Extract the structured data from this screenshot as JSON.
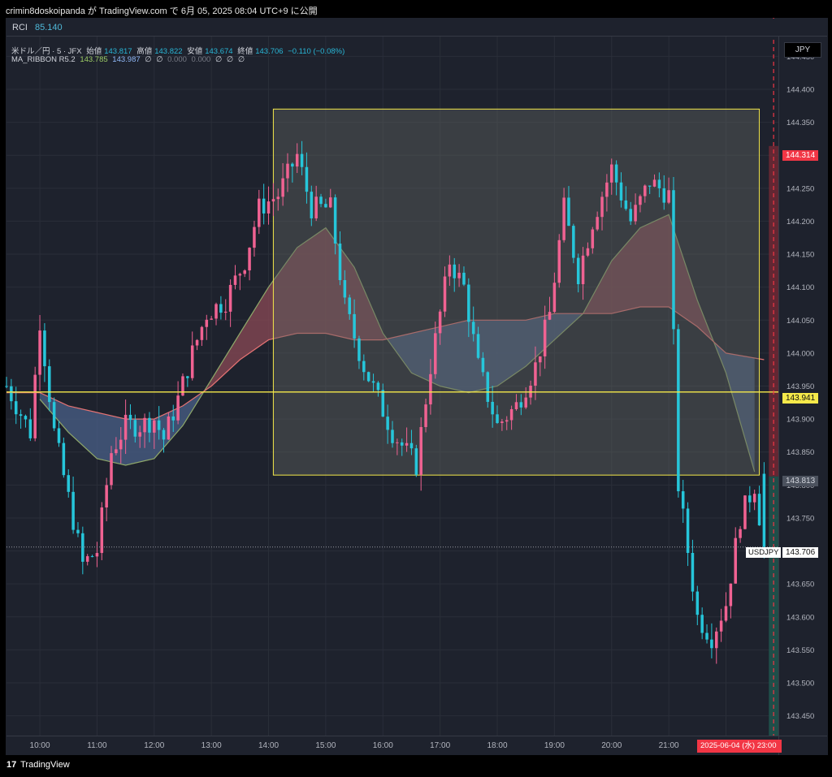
{
  "header": {
    "share_text": "crimin8doskoipanda が TradingView.com で 6月 05, 2025 08:04 UTC+9 に公開"
  },
  "rci_pane": {
    "label": "RCI",
    "value": "85.140"
  },
  "legend": {
    "symbol": "米ドル／円 · 5 · JFX",
    "open_label": "始値",
    "open": "143.817",
    "high_label": "高値",
    "high": "143.822",
    "low_label": "安値",
    "low": "143.674",
    "close_label": "終値",
    "close": "143.706",
    "change": "−0.110 (−0.08%)",
    "indicator_name": "MA_RIBBON R5.2",
    "indicator_values": [
      "143.785",
      "143.987",
      "∅",
      "∅",
      "0.000",
      "0.000",
      "∅",
      "∅",
      "∅"
    ]
  },
  "currency_button": "JPY",
  "price_labels": {
    "target": "144.314",
    "horizontal_line": "143.941",
    "entry": "143.813",
    "last_symbol": "USDJPY",
    "last": "143.706"
  },
  "date_tag": "2025-06-04 (水)  23:00",
  "footer": {
    "logo_glyph": "17",
    "brand": "TradingView"
  },
  "colors": {
    "bull": "#f06292",
    "bear": "#26c6da",
    "background": "#1e222d",
    "ribbon_up": "#8b4a55",
    "ribbon_down": "#4a6088",
    "fast_ma": "#8fa86a",
    "slow_ma": "#e57373",
    "slow_ma_down": "#a8c4f0",
    "hline": "#f5e94a",
    "box_border": "#f5e94a",
    "target_zone": "#7a2a35",
    "stop_zone": "#1f5a50",
    "date_line": "#f23645"
  },
  "chart_data": {
    "type": "candlestick",
    "x_ticks": [
      "10:00",
      "11:00",
      "12:00",
      "13:00",
      "14:00",
      "15:00",
      "16:00",
      "17:00",
      "18:00",
      "19:00",
      "20:00",
      "21:00",
      "22:00"
    ],
    "y_ticks": [
      "144.450",
      "144.400",
      "144.350",
      "144.300",
      "144.250",
      "144.200",
      "144.150",
      "144.100",
      "144.050",
      "144.000",
      "143.950",
      "143.900",
      "143.850",
      "143.800",
      "143.750",
      "143.700",
      "143.650",
      "143.600",
      "143.550",
      "143.500",
      "143.450"
    ],
    "ylim": [
      143.42,
      144.48
    ],
    "x_range": [
      "09:25",
      "22:55"
    ],
    "candle_interval_minutes": 5,
    "close_path": [
      [
        "09:25",
        143.95
      ],
      [
        "09:50",
        143.88
      ],
      [
        "10:00",
        144.05
      ],
      [
        "10:15",
        143.88
      ],
      [
        "10:30",
        143.78
      ],
      [
        "10:45",
        143.68
      ],
      [
        "11:00",
        143.7
      ],
      [
        "11:15",
        143.85
      ],
      [
        "11:30",
        143.89
      ],
      [
        "11:45",
        143.89
      ],
      [
        "12:00",
        143.9
      ],
      [
        "12:10",
        143.87
      ],
      [
        "12:25",
        143.93
      ],
      [
        "12:40",
        144.0
      ],
      [
        "12:55",
        144.06
      ],
      [
        "13:15",
        144.08
      ],
      [
        "13:35",
        144.14
      ],
      [
        "13:50",
        144.22
      ],
      [
        "14:10",
        144.24
      ],
      [
        "14:30",
        144.3
      ],
      [
        "14:45",
        144.22
      ],
      [
        "15:05",
        144.22
      ],
      [
        "15:20",
        144.07
      ],
      [
        "15:40",
        143.98
      ],
      [
        "15:55",
        143.93
      ],
      [
        "16:10",
        143.88
      ],
      [
        "16:35",
        143.83
      ],
      [
        "16:50",
        143.98
      ],
      [
        "17:10",
        144.14
      ],
      [
        "17:25",
        144.1
      ],
      [
        "17:40",
        143.98
      ],
      [
        "18:00",
        143.89
      ],
      [
        "18:20",
        143.92
      ],
      [
        "18:40",
        143.98
      ],
      [
        "18:55",
        144.06
      ],
      [
        "19:10",
        144.22
      ],
      [
        "19:25",
        144.12
      ],
      [
        "19:40",
        144.2
      ],
      [
        "20:00",
        144.28
      ],
      [
        "20:20",
        144.2
      ],
      [
        "20:40",
        144.26
      ],
      [
        "21:00",
        144.24
      ],
      [
        "21:10",
        143.8
      ],
      [
        "21:20",
        143.7
      ],
      [
        "21:30",
        143.6
      ],
      [
        "21:45",
        143.57
      ],
      [
        "22:00",
        143.62
      ],
      [
        "22:15",
        143.75
      ],
      [
        "22:30",
        143.8
      ],
      [
        "22:40",
        143.706
      ]
    ],
    "ohlc_last": {
      "open": 143.817,
      "high": 143.822,
      "low": 143.674,
      "close": 143.706
    },
    "ma_fast": [
      [
        "10:00",
        143.93
      ],
      [
        "10:30",
        143.88
      ],
      [
        "11:00",
        143.84
      ],
      [
        "11:30",
        143.83
      ],
      [
        "12:00",
        143.84
      ],
      [
        "12:30",
        143.89
      ],
      [
        "13:00",
        143.96
      ],
      [
        "13:30",
        144.03
      ],
      [
        "14:00",
        144.1
      ],
      [
        "14:30",
        144.16
      ],
      [
        "15:00",
        144.19
      ],
      [
        "15:30",
        144.13
      ],
      [
        "16:00",
        144.03
      ],
      [
        "16:30",
        143.97
      ],
      [
        "17:00",
        143.95
      ],
      [
        "17:30",
        143.94
      ],
      [
        "18:00",
        143.95
      ],
      [
        "18:30",
        143.98
      ],
      [
        "19:00",
        144.02
      ],
      [
        "19:30",
        144.06
      ],
      [
        "20:00",
        144.14
      ],
      [
        "20:30",
        144.19
      ],
      [
        "21:00",
        144.21
      ],
      [
        "21:30",
        144.08
      ],
      [
        "22:00",
        143.97
      ],
      [
        "22:30",
        143.82
      ]
    ],
    "ma_slow": [
      [
        "09:25",
        143.94
      ],
      [
        "10:00",
        143.94
      ],
      [
        "10:30",
        143.92
      ],
      [
        "11:00",
        143.91
      ],
      [
        "11:30",
        143.9
      ],
      [
        "12:00",
        143.9
      ],
      [
        "12:30",
        143.92
      ],
      [
        "13:00",
        143.95
      ],
      [
        "13:30",
        143.99
      ],
      [
        "14:00",
        144.02
      ],
      [
        "14:30",
        144.03
      ],
      [
        "15:00",
        144.03
      ],
      [
        "15:30",
        144.02
      ],
      [
        "16:00",
        144.02
      ],
      [
        "16:30",
        144.03
      ],
      [
        "17:00",
        144.04
      ],
      [
        "17:30",
        144.05
      ],
      [
        "18:00",
        144.05
      ],
      [
        "18:30",
        144.05
      ],
      [
        "19:00",
        144.06
      ],
      [
        "19:30",
        144.06
      ],
      [
        "20:00",
        144.06
      ],
      [
        "20:30",
        144.07
      ],
      [
        "21:00",
        144.07
      ],
      [
        "21:30",
        144.04
      ],
      [
        "22:00",
        144.0
      ],
      [
        "22:40",
        143.99
      ]
    ],
    "horizontal_line": 143.941,
    "box": {
      "start": "14:05",
      "end": "22:35",
      "top": 144.37,
      "bottom": 143.815
    },
    "position": {
      "entry": 143.813,
      "target": 144.314,
      "stop": 143.42,
      "start": "22:45",
      "end": "22:55"
    },
    "vertical_marker": "22:50"
  }
}
